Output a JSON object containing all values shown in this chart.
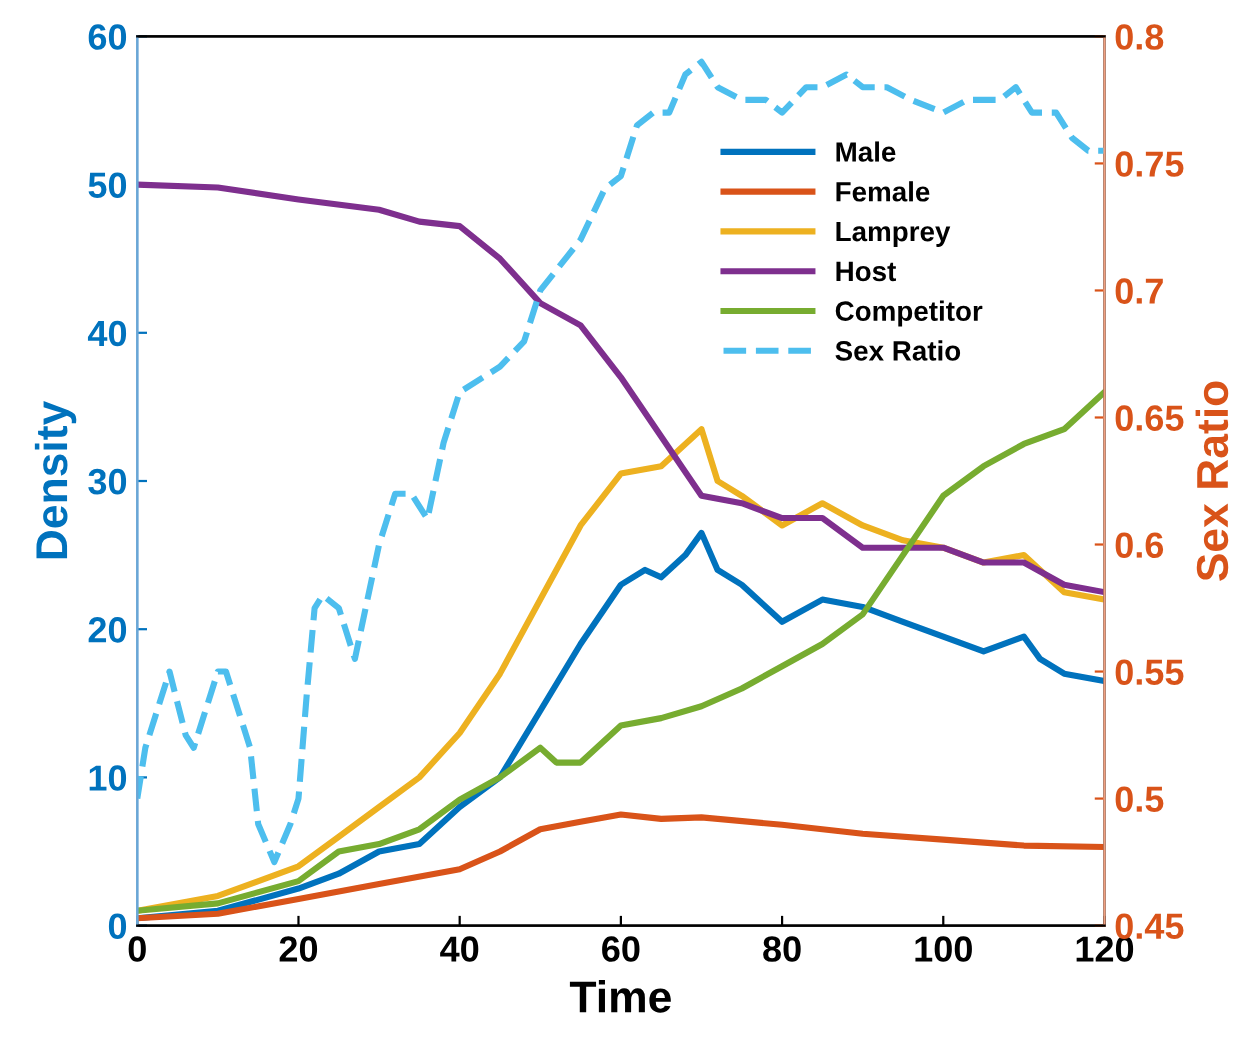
{
  "chart_data": {
    "type": "line",
    "xlabel": "Time",
    "ylabel": "Density",
    "y2label": "Sex Ratio",
    "xlim": [
      0,
      120
    ],
    "xticks": [
      0,
      20,
      40,
      60,
      80,
      100,
      120
    ],
    "ylim": [
      0,
      60
    ],
    "yticks": [
      0,
      10,
      20,
      30,
      40,
      50,
      60
    ],
    "y2lim": [
      0.45,
      0.8
    ],
    "y2ticks": [
      0.45,
      0.5,
      0.55,
      0.6,
      0.65,
      0.7,
      0.75,
      0.8
    ],
    "legend": "top right",
    "grid": false,
    "series": [
      {
        "name": "Male",
        "color": "#0072bd",
        "x": [
          0,
          10,
          20,
          25,
          30,
          35,
          40,
          45,
          50,
          55,
          60,
          63,
          65,
          68,
          70,
          72,
          75,
          80,
          85,
          90,
          95,
          100,
          105,
          110,
          112,
          115,
          120
        ],
        "values": [
          0.5,
          1,
          2.5,
          3.5,
          5,
          5.5,
          8,
          10,
          14.5,
          19,
          23,
          24,
          23.5,
          25,
          26.5,
          24,
          23,
          20.5,
          22,
          21.5,
          20.5,
          19.5,
          18.5,
          19.5,
          18,
          17,
          16.5
        ]
      },
      {
        "name": "Female",
        "color": "#d95319",
        "x": [
          0,
          10,
          20,
          30,
          40,
          45,
          50,
          55,
          60,
          65,
          70,
          80,
          90,
          100,
          110,
          120
        ],
        "values": [
          0.5,
          0.8,
          1.8,
          2.8,
          3.8,
          5,
          6.5,
          7,
          7.5,
          7.2,
          7.3,
          6.8,
          6.2,
          5.8,
          5.4,
          5.3
        ]
      },
      {
        "name": "Lamprey",
        "color": "#edb120",
        "x": [
          0,
          10,
          20,
          25,
          30,
          35,
          40,
          45,
          50,
          55,
          60,
          65,
          70,
          72,
          75,
          80,
          85,
          90,
          95,
          100,
          105,
          110,
          115,
          120
        ],
        "values": [
          1,
          2,
          4,
          6,
          8,
          10,
          13,
          17,
          22,
          27,
          30.5,
          31,
          33.5,
          30,
          29,
          27,
          28.5,
          27,
          26,
          25.5,
          24.5,
          25,
          22.5,
          22
        ]
      },
      {
        "name": "Host",
        "color": "#7e2f8e",
        "x": [
          0,
          10,
          20,
          30,
          35,
          40,
          45,
          50,
          55,
          60,
          65,
          70,
          75,
          80,
          85,
          90,
          95,
          100,
          105,
          110,
          115,
          120
        ],
        "values": [
          50,
          49.8,
          49,
          48.3,
          47.5,
          47.2,
          45,
          42,
          40.5,
          37,
          33,
          29,
          28.5,
          27.5,
          27.5,
          25.5,
          25.5,
          25.5,
          24.5,
          24.5,
          23,
          22.5
        ]
      },
      {
        "name": "Competitor",
        "color": "#77ac30",
        "x": [
          0,
          10,
          20,
          25,
          30,
          35,
          40,
          45,
          50,
          52,
          55,
          60,
          65,
          70,
          75,
          80,
          85,
          90,
          95,
          100,
          105,
          110,
          115,
          120
        ],
        "values": [
          1,
          1.5,
          3,
          5,
          5.5,
          6.5,
          8.5,
          10,
          12,
          11,
          11,
          13.5,
          14,
          14.8,
          16,
          17.5,
          19,
          21,
          25,
          29,
          31,
          32.5,
          33.5,
          36
        ]
      },
      {
        "name": "Sex Ratio",
        "color": "#4dbeee",
        "axis": "y2",
        "line_style": "dashed",
        "x": [
          0,
          1,
          4,
          6,
          7,
          10,
          11,
          14,
          15,
          17,
          19,
          20,
          21,
          22,
          23,
          25,
          27,
          30,
          32,
          34,
          36,
          38,
          40,
          45,
          48,
          50,
          55,
          58,
          60,
          62,
          64,
          66,
          68,
          70,
          72,
          75,
          78,
          80,
          83,
          85,
          88,
          90,
          93,
          96,
          100,
          103,
          107,
          109,
          111,
          114,
          116,
          118,
          120
        ],
        "values": [
          0.5,
          0.52,
          0.55,
          0.525,
          0.52,
          0.55,
          0.55,
          0.52,
          0.49,
          0.475,
          0.49,
          0.5,
          0.54,
          0.575,
          0.58,
          0.575,
          0.555,
          0.6,
          0.62,
          0.62,
          0.61,
          0.64,
          0.66,
          0.67,
          0.68,
          0.7,
          0.72,
          0.74,
          0.745,
          0.765,
          0.77,
          0.77,
          0.785,
          0.79,
          0.78,
          0.775,
          0.775,
          0.77,
          0.78,
          0.78,
          0.785,
          0.78,
          0.78,
          0.775,
          0.77,
          0.775,
          0.775,
          0.78,
          0.77,
          0.77,
          0.76,
          0.755,
          0.755
        ]
      }
    ]
  }
}
